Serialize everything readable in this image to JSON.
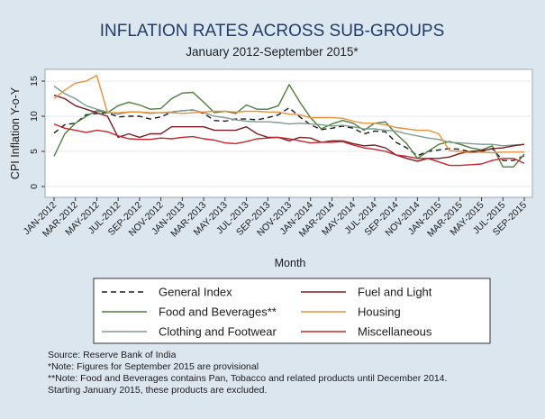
{
  "chart_data": {
    "type": "line",
    "title": "INFLATION RATES ACROSS SUB-GROUPS",
    "subtitle": "January 2012-September 2015*",
    "xlabel": "Month",
    "ylabel": "CPI Inflation Y-o-Y",
    "ylim": [
      0,
      15
    ],
    "yticks": [
      0,
      5,
      10,
      15
    ],
    "x_tick_labels": [
      "JAN-2012",
      "MAR-2012",
      "MAY-2012",
      "JUL-2012",
      "SEP-2012",
      "NOV-2012",
      "JAN-2013",
      "MAR-2013",
      "MAY-2013",
      "JUL-2013",
      "SEP-2013",
      "NOV-2013",
      "JAN-2014",
      "MAR-2014",
      "MAY-2014",
      "JUL-2014",
      "SEP-2014",
      "NOV-2014",
      "JAN-2015",
      "MAR-2015",
      "MAY-2015",
      "JUL-2015",
      "SEP-2015"
    ],
    "grid": true,
    "legend_position": "bottom",
    "categories": [
      "JAN-2012",
      "FEB-2012",
      "MAR-2012",
      "APR-2012",
      "MAY-2012",
      "JUN-2012",
      "JUL-2012",
      "AUG-2012",
      "SEP-2012",
      "OCT-2012",
      "NOV-2012",
      "DEC-2012",
      "JAN-2013",
      "FEB-2013",
      "MAR-2013",
      "APR-2013",
      "MAY-2013",
      "JUN-2013",
      "JUL-2013",
      "AUG-2013",
      "SEP-2013",
      "OCT-2013",
      "NOV-2013",
      "DEC-2013",
      "JAN-2014",
      "FEB-2014",
      "MAR-2014",
      "APR-2014",
      "MAY-2014",
      "JUN-2014",
      "JUL-2014",
      "AUG-2014",
      "SEP-2014",
      "OCT-2014",
      "NOV-2014",
      "DEC-2014",
      "JAN-2015",
      "FEB-2015",
      "MAR-2015",
      "APR-2015",
      "MAY-2015",
      "JUN-2015",
      "JUL-2015",
      "AUG-2015",
      "SEP-2015"
    ],
    "series": [
      {
        "name": "General Index",
        "color": "#1a1a1a",
        "dash": "6,4",
        "values": [
          7.6,
          8.8,
          9.0,
          10.2,
          10.4,
          10.5,
          9.9,
          10.0,
          10.0,
          9.6,
          9.9,
          10.6,
          10.8,
          10.9,
          10.4,
          9.4,
          9.3,
          9.6,
          9.6,
          9.5,
          9.8,
          10.2,
          11.2,
          9.9,
          8.8,
          8.1,
          8.3,
          8.6,
          8.3,
          7.5,
          7.9,
          7.8,
          6.3,
          5.5,
          4.4,
          5.0,
          5.2,
          5.4,
          5.3,
          4.9,
          5.0,
          5.4,
          3.7,
          3.7,
          4.4
        ]
      },
      {
        "name": "Food and Beverages**",
        "color": "#4e7f3c",
        "dash": "",
        "values": [
          4.3,
          7.5,
          9.0,
          10.0,
          10.8,
          10.5,
          11.5,
          12.0,
          11.6,
          11.0,
          11.1,
          12.5,
          13.3,
          13.4,
          12.0,
          10.5,
          10.7,
          10.4,
          11.6,
          11.0,
          11.0,
          11.5,
          14.5,
          12.0,
          9.8,
          8.2,
          8.9,
          9.4,
          9.0,
          8.0,
          9.0,
          9.2,
          7.5,
          6.1,
          4.0,
          5.0,
          6.0,
          6.4,
          6.0,
          5.5,
          5.2,
          5.8,
          2.8,
          2.8,
          4.6
        ]
      },
      {
        "name": "Clothing and Footwear",
        "color": "#7f9a92",
        "dash": "",
        "values": [
          14.3,
          13.2,
          12.5,
          11.5,
          11.0,
          10.6,
          10.3,
          10.6,
          10.6,
          10.4,
          10.5,
          10.6,
          10.8,
          10.9,
          10.5,
          10.0,
          9.8,
          9.5,
          9.3,
          9.2,
          9.2,
          9.1,
          8.9,
          9.0,
          8.9,
          8.8,
          8.6,
          8.7,
          8.5,
          8.2,
          8.2,
          8.0,
          7.9,
          7.5,
          7.2,
          6.9,
          6.7,
          6.3,
          6.2,
          6.1,
          6.0,
          6.0,
          5.8,
          5.9,
          6.0
        ]
      },
      {
        "name": "Fuel and Light",
        "color": "#7b1d23",
        "dash": "",
        "values": [
          13.0,
          12.5,
          11.5,
          11.0,
          10.5,
          10.0,
          7.0,
          7.5,
          7.0,
          7.5,
          7.5,
          8.5,
          8.5,
          8.5,
          8.5,
          8.0,
          8.0,
          8.0,
          8.5,
          7.5,
          7.0,
          7.0,
          6.5,
          7.0,
          6.9,
          6.3,
          6.5,
          6.5,
          6.1,
          5.8,
          5.9,
          5.5,
          4.5,
          4.0,
          3.6,
          4.0,
          4.0,
          4.2,
          4.7,
          5.0,
          5.1,
          5.4,
          5.5,
          5.8,
          6.0
        ]
      },
      {
        "name": "Housing",
        "color": "#e8913a",
        "dash": "",
        "values": [
          12.5,
          13.7,
          14.7,
          15.0,
          15.8,
          10.5,
          10.5,
          10.6,
          10.6,
          10.5,
          10.5,
          10.5,
          10.4,
          10.5,
          10.6,
          10.7,
          10.7,
          10.6,
          10.7,
          10.7,
          10.6,
          10.6,
          10.3,
          10.2,
          9.8,
          9.8,
          9.8,
          9.7,
          9.3,
          9.0,
          9.0,
          8.8,
          8.4,
          8.2,
          8.0,
          8.0,
          7.5,
          5.1,
          5.0,
          4.8,
          4.9,
          4.8,
          4.9,
          4.9,
          4.9
        ]
      },
      {
        "name": "Miscellaneous",
        "color": "#c8242b",
        "dash": "",
        "values": [
          8.9,
          8.3,
          8.0,
          7.7,
          8.0,
          7.8,
          7.2,
          6.8,
          6.7,
          6.7,
          6.9,
          6.8,
          7.0,
          7.1,
          6.8,
          6.6,
          6.2,
          6.1,
          6.4,
          6.8,
          6.9,
          7.0,
          6.8,
          6.5,
          6.2,
          6.3,
          6.3,
          6.4,
          5.9,
          5.5,
          5.3,
          5.0,
          4.5,
          4.3,
          4.0,
          4.0,
          3.5,
          3.0,
          3.0,
          3.1,
          3.2,
          3.7,
          4.0,
          4.0,
          3.3
        ]
      }
    ],
    "legend_order": [
      "General Index",
      "Fuel and Light",
      "Food and Beverages**",
      "Housing",
      "Clothing and Footwear",
      "Miscellaneous"
    ]
  },
  "notes": [
    "Source: Reserve Bank of India",
    "*Note: Figures for September 2015 are provisional",
    "**Note: Food and Beverages contains Pan, Tobacco and related products until December 2014.",
    "Starting January 2015, these products are excluded."
  ]
}
